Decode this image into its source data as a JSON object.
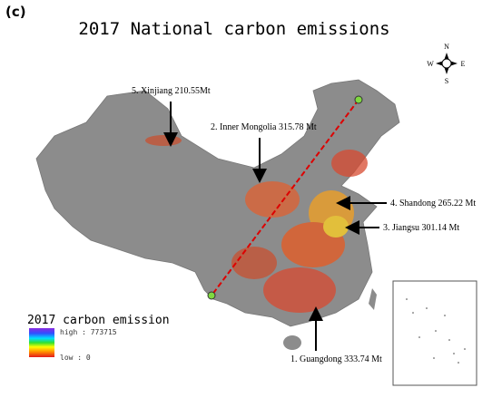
{
  "panel_label": "(c)",
  "title": "2017  National carbon emissions",
  "compass": {
    "n": "N",
    "s": "S",
    "w": "W",
    "e": "E"
  },
  "annotations": [
    "5. Xinjiang 210.55Mt",
    "2. Inner Mongolia 315.78 Mt",
    "4. Shandong 265.22 Mt",
    "3. Jiangsu 301.14 Mt",
    "1. Guangdong 333.74 Mt"
  ],
  "legend": {
    "title": "2017 carbon emission",
    "high": "high : 773715",
    "low": "low : 0"
  }
}
